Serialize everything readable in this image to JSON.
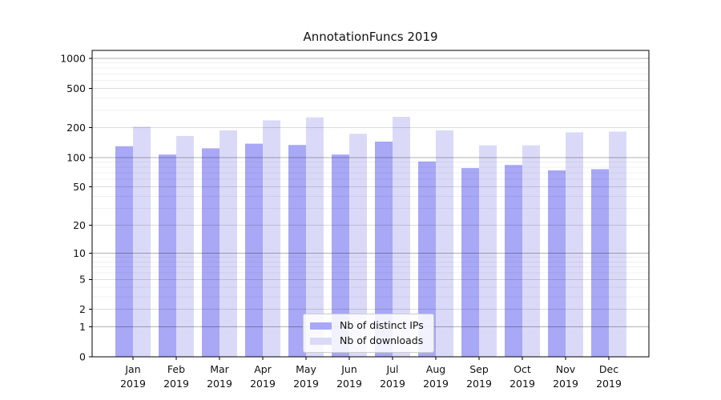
{
  "chart_data": {
    "type": "bar",
    "title": "AnnotationFuncs 2019",
    "categories": [
      "Jan",
      "Feb",
      "Mar",
      "Apr",
      "May",
      "Jun",
      "Jul",
      "Aug",
      "Sep",
      "Oct",
      "Nov",
      "Dec"
    ],
    "x_year_label": "2019",
    "series": [
      {
        "name": "Nb of distinct IPs",
        "color": "#a8a8f6",
        "values": [
          130,
          107,
          124,
          138,
          134,
          107,
          145,
          91,
          78,
          84,
          74,
          76
        ]
      },
      {
        "name": "Nb of downloads",
        "color": "#dadaf8",
        "values": [
          205,
          165,
          188,
          238,
          255,
          174,
          258,
          188,
          133,
          133,
          180,
          183
        ]
      }
    ],
    "y_ticks": [
      0,
      1,
      2,
      5,
      10,
      20,
      50,
      100,
      200,
      500,
      1000
    ],
    "y_scale": "log10(1+x)",
    "ylim": [
      0,
      1200
    ],
    "grid": true,
    "legend_position": "bottom-center",
    "text_color": "#111111",
    "axis_color": "#000000"
  }
}
